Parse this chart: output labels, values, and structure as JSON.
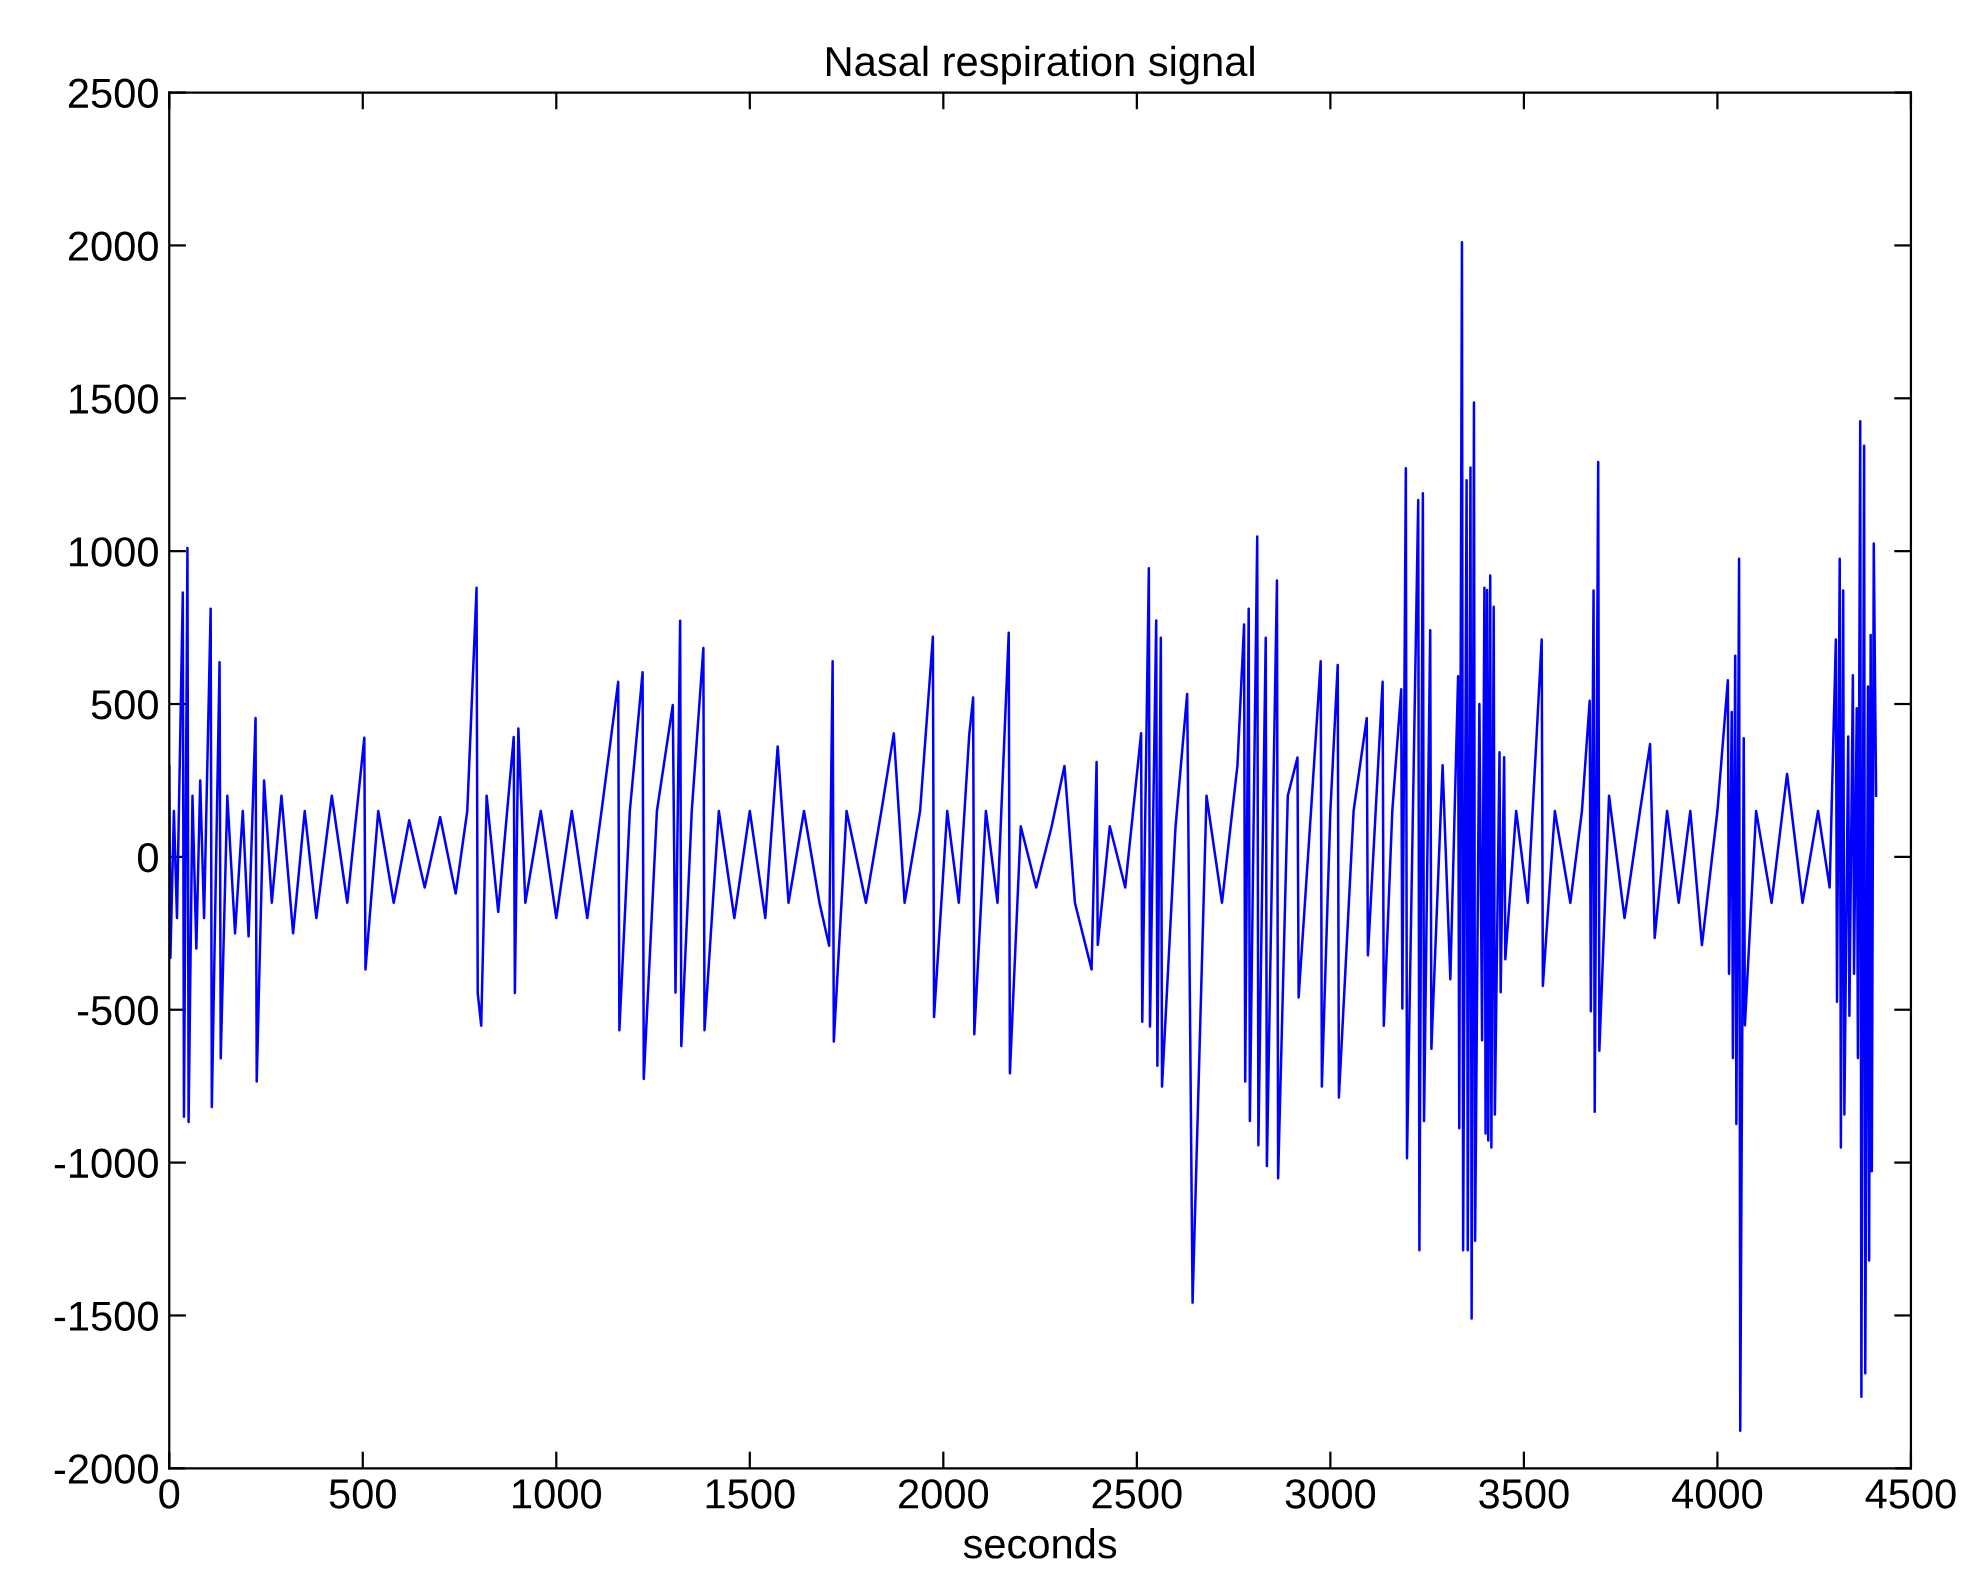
{
  "chart_data": {
    "type": "line",
    "title": "Nasal respiration signal",
    "xlabel": "seconds",
    "xlim": [
      0,
      4500
    ],
    "xticks": [
      0,
      500,
      1000,
      1500,
      2000,
      2500,
      3000,
      3500,
      4000,
      4500
    ],
    "ylim": [
      -2000,
      2500
    ],
    "yticks": [
      -2000,
      -1500,
      -1000,
      -500,
      0,
      500,
      1000,
      1500,
      2000,
      2500
    ],
    "grid": false,
    "line_style": "solid",
    "marker": "none",
    "series": [
      {
        "color": "#0000ff",
        "x": [
          0,
          3,
          12,
          20,
          35,
          38,
          47,
          50,
          60,
          70,
          80,
          90,
          107,
          110,
          130,
          133,
          150,
          170,
          190,
          205,
          223,
          226,
          245,
          265,
          290,
          320,
          350,
          380,
          420,
          460,
          504,
          507,
          540,
          580,
          620,
          660,
          700,
          740,
          770,
          794,
          797,
          806,
          820,
          850,
          890,
          893,
          902,
          920,
          960,
          1000,
          1040,
          1080,
          1120,
          1160,
          1163,
          1190,
          1223,
          1226,
          1260,
          1301,
          1308,
          1320,
          1323,
          1350,
          1380,
          1383,
          1420,
          1460,
          1500,
          1540,
          1572,
          1600,
          1640,
          1680,
          1705,
          1714,
          1717,
          1750,
          1800,
          1840,
          1872,
          1900,
          1940,
          1973,
          1976,
          2010,
          2040,
          2067,
          2077,
          2080,
          2110,
          2140,
          2169,
          2172,
          2200,
          2240,
          2280,
          2313,
          2340,
          2383,
          2396,
          2399,
          2430,
          2470,
          2511,
          2514,
          2531,
          2534,
          2550,
          2553,
          2562,
          2565,
          2600,
          2630,
          2644,
          2680,
          2720,
          2760,
          2777,
          2780,
          2789,
          2792,
          2811,
          2814,
          2833,
          2836,
          2862,
          2865,
          2890,
          2915,
          2918,
          2950,
          2975,
          2978,
          3000,
          3019,
          3022,
          3060,
          3094,
          3097,
          3135,
          3138,
          3160,
          3183,
          3186,
          3195,
          3198,
          3227,
          3230,
          3239,
          3242,
          3258,
          3261,
          3290,
          3310,
          3330,
          3333,
          3340,
          3343,
          3352,
          3355,
          3362,
          3365,
          3371,
          3374,
          3385,
          3392,
          3398,
          3401,
          3405,
          3408,
          3413,
          3416,
          3422,
          3425,
          3437,
          3440,
          3449,
          3452,
          3480,
          3510,
          3546,
          3549,
          3580,
          3620,
          3650,
          3670,
          3673,
          3680,
          3683,
          3692,
          3695,
          3720,
          3760,
          3800,
          3826,
          3838,
          3870,
          3900,
          3930,
          3960,
          4000,
          4027,
          4030,
          4037,
          4040,
          4046,
          4049,
          4056,
          4059,
          4068,
          4071,
          4100,
          4140,
          4180,
          4220,
          4260,
          4290,
          4306,
          4309,
          4316,
          4319,
          4325,
          4328,
          4338,
          4341,
          4350,
          4353,
          4360,
          4363,
          4369,
          4372,
          4379,
          4382,
          4389,
          4392,
          4396,
          4399,
          4404,
          4410
        ],
        "values": [
          297,
          -330,
          150,
          -200,
          865,
          -850,
          1010,
          -867,
          200,
          -300,
          250,
          -200,
          812,
          -818,
          637,
          -659,
          200,
          -250,
          150,
          -260,
          454,
          -735,
          250,
          -150,
          200,
          -250,
          150,
          -200,
          200,
          -150,
          390,
          -368,
          150,
          -150,
          120,
          -100,
          130,
          -120,
          150,
          880,
          -445,
          -552,
          200,
          -180,
          392,
          -445,
          420,
          -150,
          150,
          -200,
          150,
          -200,
          180,
          573,
          -567,
          150,
          604,
          -726,
          150,
          497,
          -444,
          772,
          -619,
          150,
          683,
          -567,
          150,
          -200,
          150,
          -200,
          361,
          -150,
          150,
          -150,
          -291,
          640,
          -604,
          150,
          -150,
          150,
          404,
          -150,
          150,
          720,
          -524,
          150,
          -150,
          400,
          521,
          -580,
          150,
          -150,
          733,
          -708,
          100,
          -100,
          100,
          297,
          -150,
          -368,
          310,
          -288,
          100,
          -100,
          404,
          -539,
          944,
          -555,
          773,
          -683,
          717,
          -751,
          100,
          533,
          -1458,
          200,
          -150,
          300,
          760,
          -735,
          812,
          -864,
          1048,
          -943,
          717,
          -1011,
          904,
          -1051,
          200,
          325,
          -460,
          150,
          640,
          -751,
          150,
          628,
          -787,
          150,
          454,
          -322,
          573,
          -552,
          150,
          548,
          -496,
          1271,
          -986,
          1167,
          -1287,
          1189,
          -864,
          741,
          -628,
          300,
          -400,
          591,
          -888,
          2010,
          -1287,
          1232,
          -1287,
          1274,
          -1510,
          1486,
          -1256,
          500,
          -600,
          880,
          -905,
          873,
          -928,
          920,
          -951,
          818,
          -843,
          342,
          -443,
          326,
          -335,
          150,
          -150,
          711,
          -422,
          150,
          -150,
          150,
          511,
          -505,
          871,
          -834,
          1292,
          -634,
          200,
          -200,
          150,
          369,
          -265,
          150,
          -150,
          150,
          -289,
          150,
          578,
          -382,
          474,
          -658,
          658,
          -874,
          975,
          -1877,
          388,
          -551,
          150,
          -150,
          271,
          -150,
          150,
          -100,
          711,
          -474,
          975,
          -951,
          871,
          -843,
          394,
          -520,
          594,
          -382,
          486,
          -658,
          1425,
          -1766,
          1345,
          -1689,
          557,
          -1320,
          726,
          -1028,
          1025,
          200
        ]
      }
    ]
  }
}
